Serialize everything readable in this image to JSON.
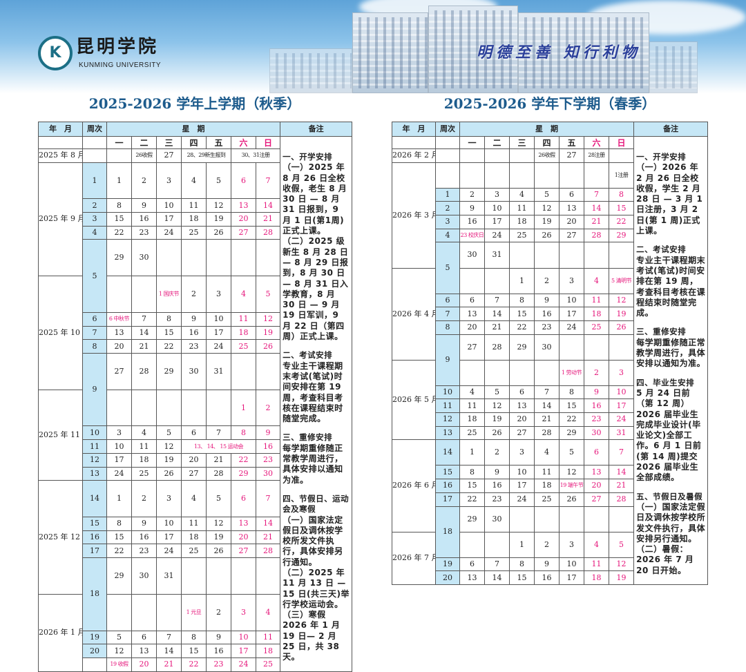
{
  "header": {
    "school_name_cn": "昆明学院",
    "school_name_en": "KUNMING UNIVERSITY",
    "motto": "明德至善 知行利物"
  },
  "colors": {
    "accent": "#1d5b8c",
    "header_bg": "#c6e7f6",
    "holiday": "#e5157a"
  },
  "columns": {
    "month": "年　月",
    "week": "周次",
    "weekdays_title": "星　期",
    "notes": "备注",
    "weekdays": [
      "一",
      "二",
      "三",
      "四",
      "五",
      "六",
      "日"
    ]
  },
  "semesters": [
    {
      "title": "2025-2026 学年上学期（秋季）",
      "months": [
        {
          "label": "2025 年 8 月",
          "rows": [
            {
              "week": "",
              "cells": [
                "",
                "26收假",
                "27",
                "28、29新生报到",
                null,
                "30、31注册",
                null
              ],
              "pink": []
            }
          ]
        },
        {
          "label": "2025 年 9 月",
          "rows": [
            {
              "week": "1",
              "cells": [
                "1",
                "2",
                "3",
                "4",
                "5",
                "6",
                "7"
              ]
            },
            {
              "week": "2",
              "cells": [
                "8",
                "9",
                "10",
                "11",
                "12",
                "13",
                "14"
              ]
            },
            {
              "week": "3",
              "cells": [
                "15",
                "16",
                "17",
                "18",
                "19",
                "20",
                "21"
              ]
            },
            {
              "week": "4",
              "cells": [
                "22",
                "23",
                "24",
                "25",
                "26",
                "27",
                "28"
              ]
            },
            {
              "week": "5",
              "week_span": 2,
              "cells": [
                "29",
                "30",
                "",
                "",
                "",
                "",
                ""
              ]
            }
          ]
        },
        {
          "label": "2025 年 10 月",
          "rows": [
            {
              "week_span": 0,
              "cells": [
                "",
                "",
                "1 国庆节",
                "2",
                "3",
                "4",
                "5"
              ],
              "pink": [
                2,
                5,
                6
              ]
            },
            {
              "week": "6",
              "cells": [
                "6 中秋节",
                "7",
                "8",
                "9",
                "10",
                "11",
                "12"
              ],
              "pink": [
                0,
                5,
                6
              ]
            },
            {
              "week": "7",
              "cells": [
                "13",
                "14",
                "15",
                "16",
                "17",
                "18",
                "19"
              ]
            },
            {
              "week": "8",
              "cells": [
                "20",
                "21",
                "22",
                "23",
                "24",
                "25",
                "26"
              ]
            },
            {
              "week": "9",
              "week_span": 2,
              "cells": [
                "27",
                "28",
                "29",
                "30",
                "31",
                "",
                ""
              ]
            }
          ]
        },
        {
          "label": "2025 年 11 月",
          "rows": [
            {
              "week_span": 0,
              "cells": [
                "",
                "",
                "",
                "",
                "",
                "1",
                "2"
              ]
            },
            {
              "week": "10",
              "cells": [
                "3",
                "4",
                "5",
                "6",
                "7",
                "8",
                "9"
              ]
            },
            {
              "week": "11",
              "cells": [
                "10",
                "11",
                "12",
                "13、 14、 15 运动会",
                null,
                null,
                "16"
              ],
              "pink": [
                3,
                6
              ]
            },
            {
              "week": "12",
              "cells": [
                "17",
                "18",
                "19",
                "20",
                "21",
                "22",
                "23"
              ]
            },
            {
              "week": "13",
              "cells": [
                "24",
                "25",
                "26",
                "27",
                "28",
                "29",
                "30"
              ]
            }
          ]
        },
        {
          "label": "2025 年 12 月",
          "rows": [
            {
              "week": "14",
              "cells": [
                "1",
                "2",
                "3",
                "4",
                "5",
                "6",
                "7"
              ]
            },
            {
              "week": "15",
              "cells": [
                "8",
                "9",
                "10",
                "11",
                "12",
                "13",
                "14"
              ]
            },
            {
              "week": "16",
              "cells": [
                "15",
                "16",
                "17",
                "18",
                "19",
                "20",
                "21"
              ]
            },
            {
              "week": "17",
              "cells": [
                "22",
                "23",
                "24",
                "25",
                "26",
                "27",
                "28"
              ]
            },
            {
              "week": "18",
              "week_span": 2,
              "cells": [
                "29",
                "30",
                "31",
                "",
                "",
                "",
                ""
              ]
            }
          ]
        },
        {
          "label": "2026 年 1 月",
          "rows": [
            {
              "week_span": 0,
              "cells": [
                "",
                "",
                "",
                "1 元旦",
                "2",
                "3",
                "4"
              ],
              "pink": [
                3,
                5,
                6
              ]
            },
            {
              "week": "19",
              "cells": [
                "5",
                "6",
                "7",
                "8",
                "9",
                "10",
                "11"
              ]
            },
            {
              "week": "20",
              "cells": [
                "12",
                "13",
                "14",
                "15",
                "16",
                "17",
                "18"
              ]
            },
            {
              "week": "",
              "cells": [
                "19 收假",
                "20",
                "21",
                "22",
                "23",
                "24",
                "25"
              ],
              "pink": [
                0,
                1,
                2,
                3,
                4,
                5,
                6
              ]
            }
          ]
        }
      ],
      "notes": [
        {
          "title": "一、开学安排",
          "paras": [
            "（一）2025 年 8 月 26 日全校收假，老生 8 月 30 日 — 8 月 31 日报到，9 月 1 日(第1周)正式上课。",
            "（二）2025 级新生 8 月 28 日 — 8 月 29 日报到，8 月 30 日 — 8 月 31 日入学教育，8 月 30 日 — 9 月 19 日军训，9 月 22 日（第四周）正式上课。"
          ]
        },
        {
          "title": "二、考试安排",
          "paras": [
            "专业主干课程期末考试(笔试)时间安排在第 19 周，考查科目考核在课程结束时随堂完成。"
          ]
        },
        {
          "title": "三、重修安排",
          "paras": [
            "每学期重修随正常教学周进行，具体安排以通知为准。"
          ]
        },
        {
          "title": "四、节假日、运动会及寒假",
          "paras": [
            "（一）国家法定假日及调休按学校所发文件执行，具体安排另行通知。",
            "（二）2025 年 11 月 13 日 — 15 日(共三天)举行学校运动会。",
            "（三）寒假 2026 年 1 月 19 日— 2 月 25 日，共 38 天。"
          ]
        }
      ]
    },
    {
      "title": "2025-2026 学年下学期（春季）",
      "months": [
        {
          "label": "2026 年 2 月",
          "rows": [
            {
              "week": "",
              "cells": [
                "",
                "",
                "",
                "26收假",
                "27",
                "28注册",
                ""
              ],
              "pink": []
            }
          ]
        },
        {
          "label": "2026 年 3 月",
          "rows": [
            {
              "week": "",
              "cells": [
                "",
                "",
                "",
                "",
                "",
                "",
                "1注册"
              ],
              "pink": []
            },
            {
              "week": "1",
              "cells": [
                "2",
                "3",
                "4",
                "5",
                "6",
                "7",
                "8"
              ]
            },
            {
              "week": "2",
              "cells": [
                "9",
                "10",
                "11",
                "12",
                "13",
                "14",
                "15"
              ]
            },
            {
              "week": "3",
              "cells": [
                "16",
                "17",
                "18",
                "19",
                "20",
                "21",
                "22"
              ]
            },
            {
              "week": "4",
              "cells": [
                "23 校庆日",
                "24",
                "25",
                "26",
                "27",
                "28",
                "29"
              ],
              "pink": [
                0,
                5,
                6
              ]
            },
            {
              "week": "5",
              "week_span": 2,
              "cells": [
                "30",
                "31",
                "",
                "",
                "",
                "",
                ""
              ]
            }
          ]
        },
        {
          "label": "2026 年 4 月",
          "rows": [
            {
              "week_span": 0,
              "cells": [
                "",
                "",
                "1",
                "2",
                "3",
                "4",
                "5 清明节"
              ]
            },
            {
              "week": "6",
              "cells": [
                "6",
                "7",
                "8",
                "9",
                "10",
                "11",
                "12"
              ]
            },
            {
              "week": "7",
              "cells": [
                "13",
                "14",
                "15",
                "16",
                "17",
                "18",
                "19"
              ]
            },
            {
              "week": "8",
              "cells": [
                "20",
                "21",
                "22",
                "23",
                "24",
                "25",
                "26"
              ]
            },
            {
              "week": "9",
              "week_span": 2,
              "cells": [
                "27",
                "28",
                "29",
                "30",
                "",
                "",
                ""
              ]
            }
          ]
        },
        {
          "label": "2026 年 5 月",
          "rows": [
            {
              "week_span": 0,
              "cells": [
                "",
                "",
                "",
                "",
                "1 劳动节",
                "2",
                "3"
              ],
              "pink": [
                4,
                5,
                6
              ]
            },
            {
              "week": "10",
              "cells": [
                "4",
                "5",
                "6",
                "7",
                "8",
                "9",
                "10"
              ]
            },
            {
              "week": "11",
              "cells": [
                "11",
                "12",
                "13",
                "14",
                "15",
                "16",
                "17"
              ]
            },
            {
              "week": "12",
              "cells": [
                "18",
                "19",
                "20",
                "21",
                "22",
                "23",
                "24"
              ]
            },
            {
              "week": "13",
              "cells": [
                "25",
                "26",
                "27",
                "28",
                "29",
                "30",
                "31"
              ]
            }
          ]
        },
        {
          "label": "2026 年 6 月",
          "rows": [
            {
              "week": "14",
              "cells": [
                "1",
                "2",
                "3",
                "4",
                "5",
                "6",
                "7"
              ]
            },
            {
              "week": "15",
              "cells": [
                "8",
                "9",
                "10",
                "11",
                "12",
                "13",
                "14"
              ]
            },
            {
              "week": "16",
              "cells": [
                "15",
                "16",
                "17",
                "18",
                "19 端午节",
                "20",
                "21"
              ],
              "pink": [
                4,
                5,
                6
              ]
            },
            {
              "week": "17",
              "cells": [
                "22",
                "23",
                "24",
                "25",
                "26",
                "27",
                "28"
              ]
            },
            {
              "week": "18",
              "week_span": 2,
              "cells": [
                "29",
                "30",
                "",
                "",
                "",
                "",
                ""
              ]
            }
          ]
        },
        {
          "label": "2026 年 7 月",
          "rows": [
            {
              "week_span": 0,
              "cells": [
                "",
                "",
                "1",
                "2",
                "3",
                "4",
                "5"
              ]
            },
            {
              "week": "19",
              "cells": [
                "6",
                "7",
                "8",
                "9",
                "10",
                "11",
                "12"
              ]
            },
            {
              "week": "20",
              "cells": [
                "13",
                "14",
                "15",
                "16",
                "17",
                "18",
                "19"
              ]
            }
          ]
        }
      ],
      "notes": [
        {
          "title": "一、开学安排",
          "paras": [
            "（一）2026 年 2 月 26 日全校收假，学生 2 月 28 日 — 3 月 1 日注册，3 月 2 日(第 1 周)正式上课。"
          ]
        },
        {
          "title": "二、考试安排",
          "paras": [
            "专业主干课程期末考试(笔试)时间安排在第 19 周，考查科目考核在课程结束时随堂完成。"
          ]
        },
        {
          "title": "三、重修安排",
          "paras": [
            "每学期重修随正常教学周进行，具体安排以通知为准。"
          ]
        },
        {
          "title": "四、毕业生安排",
          "paras": [
            "5 月 24 日前（第 12 周）2026 届毕业生完成毕业设计(毕业论文)全部工作。6 月 1 日前(第 14 周)提交 2026 届毕业生全部成绩。"
          ]
        },
        {
          "title": "五、节假日及暑假",
          "paras": [
            "（一）国家法定假日及调休按学校所发文件执行，具体安排另行通知。",
            "（二）暑假：2026 年 7 月 20 日开始。"
          ]
        }
      ]
    }
  ]
}
